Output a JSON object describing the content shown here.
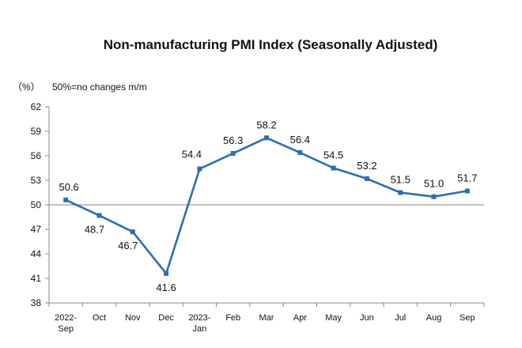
{
  "chart_data": {
    "type": "line",
    "title": "Non-manufacturing PMI Index (Seasonally Adjusted)",
    "unit_label": "（%）",
    "annotation": "50%=no changes m/m",
    "categories": [
      [
        "2022-",
        "Sep"
      ],
      [
        "Oct"
      ],
      [
        "Nov"
      ],
      [
        "Dec"
      ],
      [
        "2023-",
        "Jan"
      ],
      [
        "Feb"
      ],
      [
        "Mar"
      ],
      [
        "Apr"
      ],
      [
        "May"
      ],
      [
        "Jun"
      ],
      [
        "Jul"
      ],
      [
        "Aug"
      ],
      [
        "Sep"
      ]
    ],
    "series": [
      {
        "values": [
          50.6,
          48.7,
          46.7,
          41.6,
          54.4,
          56.3,
          58.2,
          56.4,
          54.5,
          53.2,
          51.5,
          51.0,
          51.7
        ]
      }
    ],
    "data_labels": [
      "50.6",
      "48.7",
      "46.7",
      "41.6",
      "54.4",
      "56.3",
      "58.2",
      "56.4",
      "54.5",
      "53.2",
      "51.5",
      "51.0",
      "51.7"
    ],
    "ylim": [
      38,
      62
    ],
    "yticks": [
      38,
      41,
      44,
      47,
      50,
      53,
      56,
      59,
      62
    ],
    "reference_line": 50,
    "line_color": "#2e6db4",
    "reference_color": "#808080",
    "grid": false,
    "legend": "none"
  }
}
